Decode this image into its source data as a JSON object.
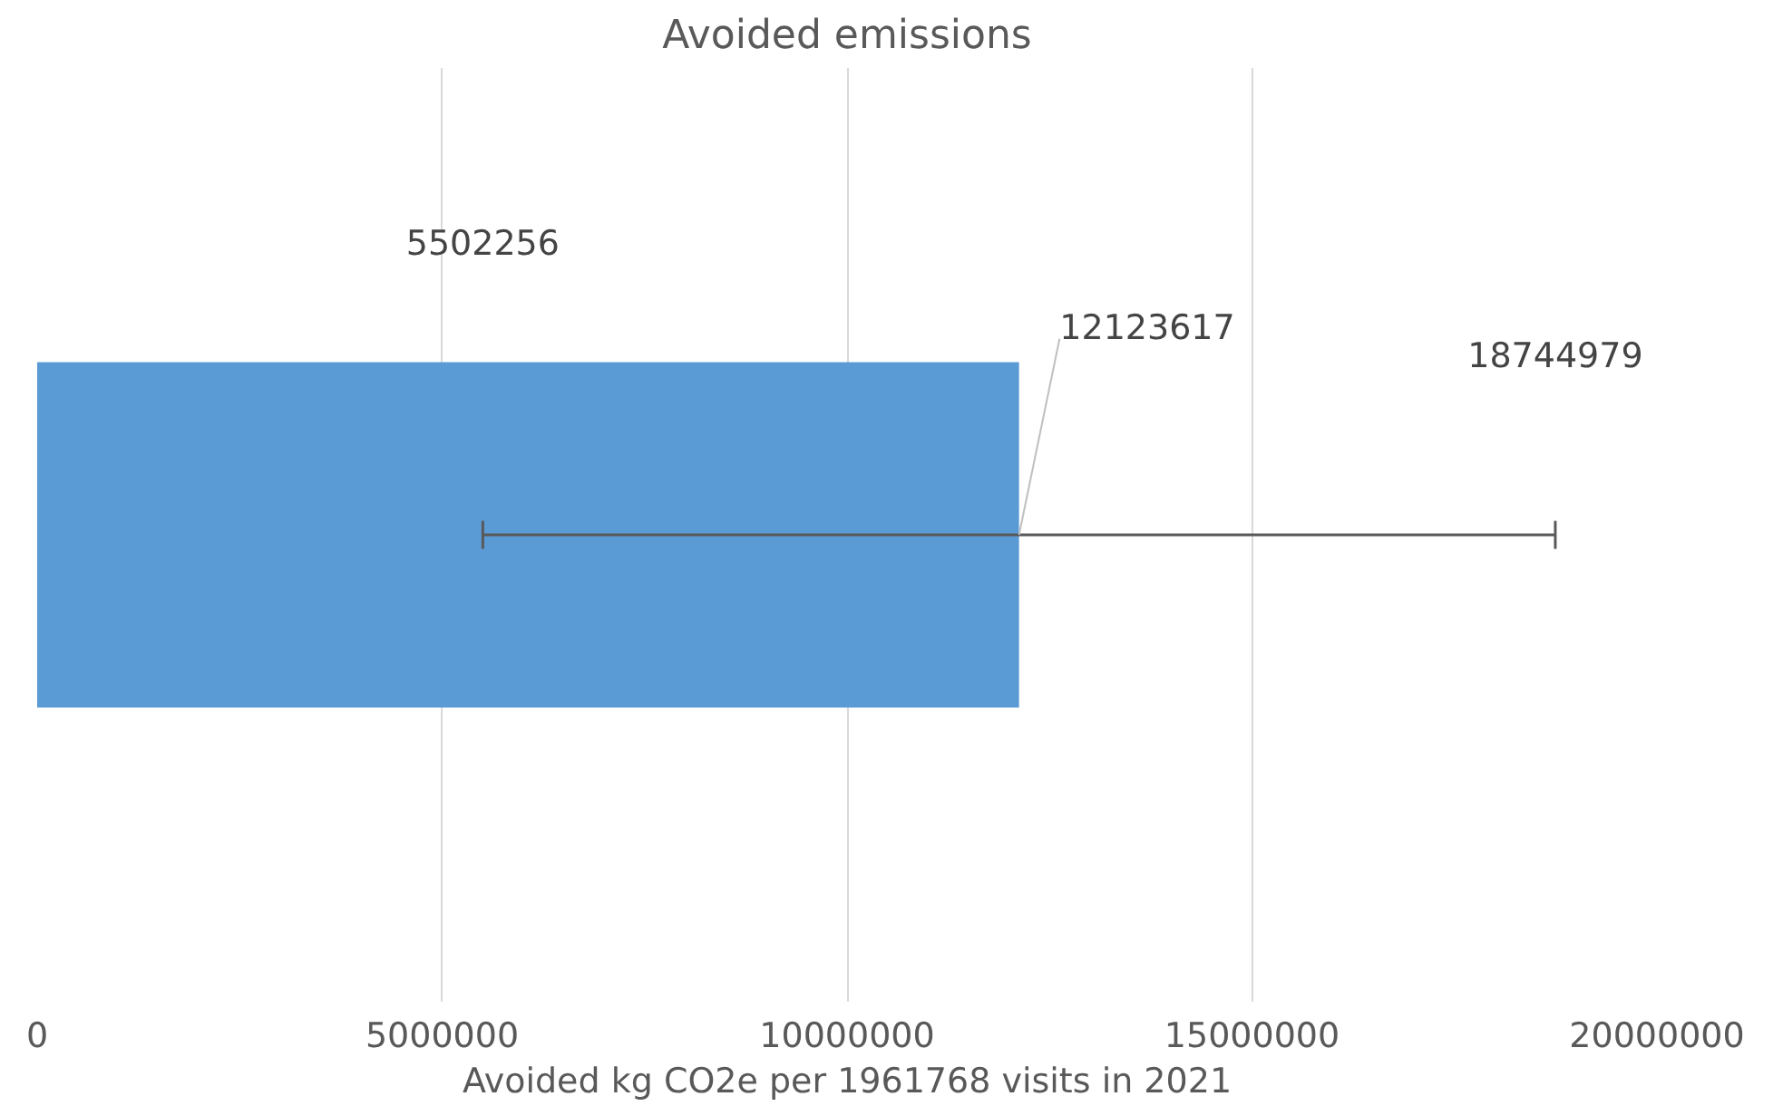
{
  "chart_data": {
    "type": "bar",
    "orientation": "horizontal",
    "title": "Avoided emissions",
    "xlabel": "Avoided kg CO2e per 1961768 visits in 2021",
    "categories": [
      null
    ],
    "values": [
      12123617
    ],
    "color": "#5b9bd5",
    "errors": [
      [
        5502256,
        18744979
      ]
    ],
    "data_labels": true,
    "annotations": [
      "5502256",
      "18744979"
    ],
    "xlim": [
      0,
      20000000
    ],
    "xticks": [
      0,
      5000000,
      10000000,
      15000000,
      20000000
    ],
    "grid": "x"
  }
}
